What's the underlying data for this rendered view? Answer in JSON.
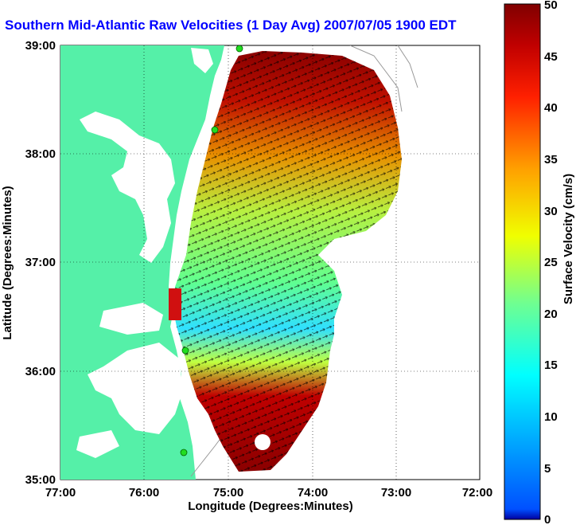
{
  "title": "Southern Mid-Atlantic Raw Velocities (1 Day Avg) 2007/07/05 1900 EDT",
  "xlabel": "Longitude (Degrees:Minutes)",
  "ylabel": "Latitude (Degrees:Minutes)",
  "colorbar_label": "Surface Velocity (cm/s)",
  "x_ticks": [
    "77:00",
    "76:00",
    "75:00",
    "74:00",
    "73:00",
    "72:00"
  ],
  "y_ticks": [
    "39:00",
    "38:00",
    "37:00",
    "36:00",
    "35:00"
  ],
  "colorbar_ticks": [
    "0",
    "5",
    "10",
    "15",
    "20",
    "25",
    "30",
    "35",
    "40",
    "45",
    "50"
  ],
  "colors": {
    "land": "#55f0a8",
    "water": "#ffffff",
    "title": "#0000ff",
    "station": "#22dd22"
  },
  "map": {
    "lon_range": [
      -77,
      -72
    ],
    "lat_range": [
      35,
      39
    ],
    "colorbar_range": [
      0,
      50
    ],
    "grid": "dotted"
  }
}
